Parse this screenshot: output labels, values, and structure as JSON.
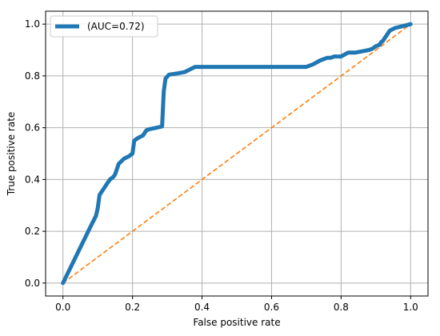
{
  "chart_data": {
    "type": "line",
    "title": "",
    "xlabel": "False positive rate",
    "ylabel": "True positive rate",
    "xlim": [
      -0.05,
      1.05
    ],
    "ylim": [
      -0.05,
      1.05
    ],
    "xticks": [
      0.0,
      0.2,
      0.4,
      0.6,
      0.8,
      1.0
    ],
    "yticks": [
      0.0,
      0.2,
      0.4,
      0.6,
      0.8,
      1.0
    ],
    "xtick_labels": [
      "0.0",
      "0.2",
      "0.4",
      "0.6",
      "0.8",
      "1.0"
    ],
    "ytick_labels": [
      "0.0",
      "0.2",
      "0.4",
      "0.6",
      "0.8",
      "1.0"
    ],
    "grid": true,
    "legend_position": "top-left",
    "series": [
      {
        "name": "(AUC=0.72)",
        "color": "#1f77b4",
        "style": "solid",
        "x": [
          0.0,
          0.08,
          0.095,
          0.1,
          0.105,
          0.115,
          0.125,
          0.135,
          0.145,
          0.15,
          0.16,
          0.175,
          0.19,
          0.2,
          0.205,
          0.215,
          0.23,
          0.24,
          0.25,
          0.27,
          0.285,
          0.29,
          0.295,
          0.305,
          0.33,
          0.35,
          0.365,
          0.38,
          0.5,
          0.6,
          0.7,
          0.72,
          0.74,
          0.76,
          0.77,
          0.78,
          0.8,
          0.82,
          0.84,
          0.86,
          0.88,
          0.89,
          0.9,
          0.91,
          0.915,
          0.92,
          0.94,
          0.955,
          0.97,
          1.0
        ],
        "y": [
          0.0,
          0.22,
          0.26,
          0.29,
          0.34,
          0.36,
          0.38,
          0.4,
          0.41,
          0.42,
          0.46,
          0.48,
          0.49,
          0.5,
          0.55,
          0.56,
          0.57,
          0.59,
          0.595,
          0.6,
          0.605,
          0.74,
          0.79,
          0.805,
          0.81,
          0.815,
          0.825,
          0.835,
          0.835,
          0.835,
          0.835,
          0.845,
          0.86,
          0.87,
          0.87,
          0.875,
          0.875,
          0.89,
          0.89,
          0.895,
          0.9,
          0.905,
          0.915,
          0.92,
          0.93,
          0.935,
          0.975,
          0.985,
          0.99,
          1.0
        ]
      },
      {
        "name": "",
        "color": "#ff7f0e",
        "style": "dashed",
        "x": [
          0.0,
          1.0
        ],
        "y": [
          0.0,
          1.0
        ]
      }
    ]
  }
}
